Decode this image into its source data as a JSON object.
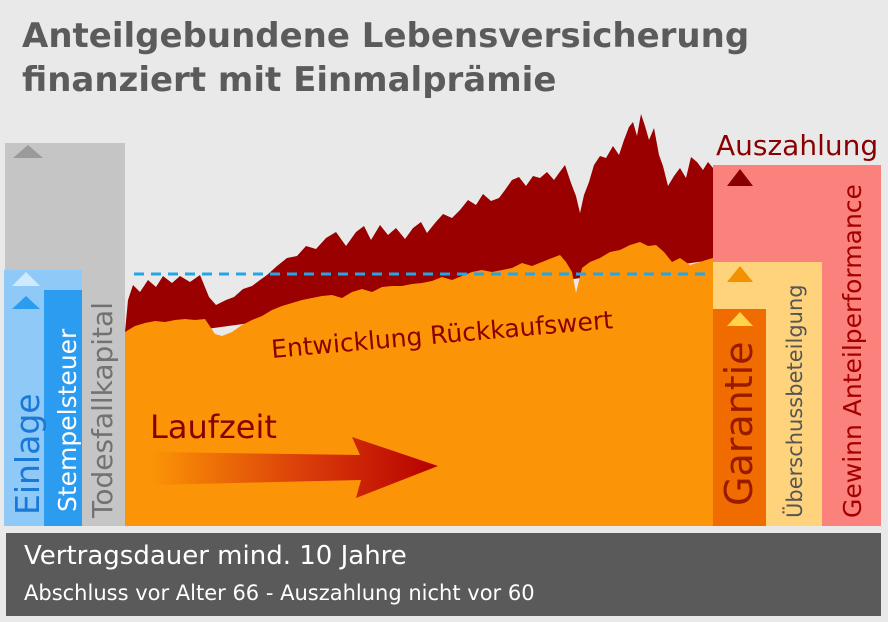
{
  "title": {
    "line1": "Anteilgebundene Lebensversicherung",
    "line2": "finanziert mit Einmalprämie"
  },
  "labels": {
    "einlage": "Einlage",
    "stempelsteuer": "Stempelsteuer",
    "todesfallkapital": "Todesfallkapital",
    "entwicklung": "Entwicklung Rückkaufswert",
    "laufzeit": "Laufzeit",
    "auszahlung": "Auszahlung",
    "garantie": "Garantie",
    "ueberschuss": "Überschussbeteilgung",
    "gewinn": "Gewinn Anteilperformance"
  },
  "footer": {
    "line1": "Vertragsdauer mind. 10 Jahre",
    "line2": "Abschluss vor Alter 66 - Auszahlung nicht vor 60"
  },
  "colors": {
    "background": "#e9e9e9",
    "title": "#5b5b5b",
    "einlage": "#8ec9f7",
    "stempelsteuer": "#2b9cf0",
    "todesfallkapital": "#c5c5c5",
    "rueckkaufswert": "#fb9406",
    "performance": "#9a0000",
    "garantie": "#f06b00",
    "ueberschuss": "#ffd37c",
    "gewinn": "#fb827c",
    "dashed_line": "#23a6e8",
    "footer": "#5a5a5a"
  }
}
